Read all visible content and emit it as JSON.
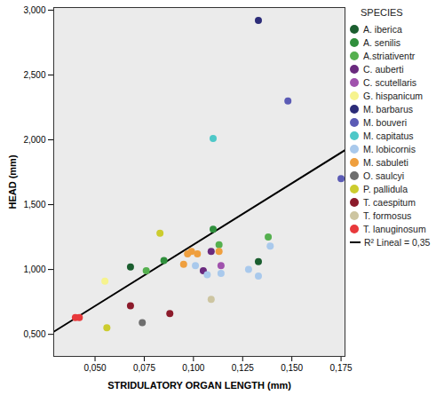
{
  "chart_data": {
    "type": "scatter",
    "x_label": "STRIDULATORY ORGAN LENGTH (mm)",
    "y_label": "HEAD (mm)",
    "legend_title": "SPECIES",
    "legend": "right",
    "xlim": [
      0.029,
      0.177
    ],
    "ylim": [
      0.33,
      3.02
    ],
    "xticks": [
      {
        "value": 0.05,
        "label": "0,050"
      },
      {
        "value": 0.075,
        "label": "0,075"
      },
      {
        "value": 0.1,
        "label": "0,100"
      },
      {
        "value": 0.125,
        "label": "0,125"
      },
      {
        "value": 0.15,
        "label": "0,150"
      },
      {
        "value": 0.175,
        "label": "0,175"
      }
    ],
    "yticks": [
      {
        "value": 0.5,
        "label": "0,500"
      },
      {
        "value": 1,
        "label": "1,000"
      },
      {
        "value": 1.5,
        "label": "1,500"
      },
      {
        "value": 2,
        "label": "2,000"
      },
      {
        "value": 2.5,
        "label": "2,500"
      },
      {
        "value": 3,
        "label": "3,000"
      }
    ],
    "series": [
      {
        "name": "A. iberica",
        "color": "#1b5e2f",
        "x": [
          0.068,
          0.133
        ],
        "values": [
          1.02,
          1.06
        ]
      },
      {
        "name": "A. senilis",
        "color": "#2f8f3c",
        "x": [
          0.085,
          0.11
        ],
        "values": [
          1.07,
          1.31
        ]
      },
      {
        "name": "A.striativentr",
        "color": "#55b04f",
        "x": [
          0.076,
          0.113,
          0.138
        ],
        "values": [
          0.99,
          1.19,
          1.25
        ]
      },
      {
        "name": "C. auberti",
        "color": "#6a2a7e",
        "x": [
          0.105,
          0.109
        ],
        "values": [
          0.99,
          1.14
        ]
      },
      {
        "name": "C. scutellaris",
        "color": "#a052ad",
        "x": [
          0.114
        ],
        "values": [
          1.03
        ]
      },
      {
        "name": "G. hispanicum",
        "color": "#f6f38e",
        "x": [
          0.055
        ],
        "values": [
          0.91
        ]
      },
      {
        "name": "M. barbarus",
        "color": "#2c2c78",
        "x": [
          0.133
        ],
        "values": [
          2.92
        ]
      },
      {
        "name": "M. bouveri",
        "color": "#5b5bb5",
        "x": [
          0.148,
          0.175
        ],
        "values": [
          2.3,
          1.7
        ]
      },
      {
        "name": "M. capitatus",
        "color": "#4ec8c8",
        "x": [
          0.11
        ],
        "values": [
          2.01
        ]
      },
      {
        "name": "M. lobicornis",
        "color": "#a9c9ec",
        "x": [
          0.101,
          0.107,
          0.114,
          0.128,
          0.133,
          0.139
        ],
        "values": [
          1.03,
          0.96,
          0.97,
          1.0,
          0.95,
          1.18
        ]
      },
      {
        "name": "M. sabuleti",
        "color": "#ef9f3e",
        "x": [
          0.095,
          0.097,
          0.099,
          0.102,
          0.113
        ],
        "values": [
          1.04,
          1.12,
          1.14,
          1.12,
          1.14
        ]
      },
      {
        "name": "O. saulcyi",
        "color": "#6e6e6e",
        "x": [
          0.074
        ],
        "values": [
          0.59
        ]
      },
      {
        "name": "P. pallidula",
        "color": "#cccc2e",
        "x": [
          0.056,
          0.083
        ],
        "values": [
          0.55,
          1.28
        ]
      },
      {
        "name": "T. caespitum",
        "color": "#8c1b2b",
        "x": [
          0.068,
          0.088
        ],
        "values": [
          0.72,
          0.66
        ]
      },
      {
        "name": "T. formosus",
        "color": "#cdc5a1",
        "x": [
          0.109
        ],
        "values": [
          0.77
        ]
      },
      {
        "name": "T. lanuginosum",
        "color": "#e8393b",
        "x": [
          0.04,
          0.042
        ],
        "values": [
          0.63,
          0.63
        ]
      }
    ],
    "fit_line": {
      "label": "R² Lineal = 0,35",
      "color": "#000000",
      "x": [
        0.029,
        0.177
      ],
      "values": [
        0.52,
        1.92
      ]
    }
  }
}
